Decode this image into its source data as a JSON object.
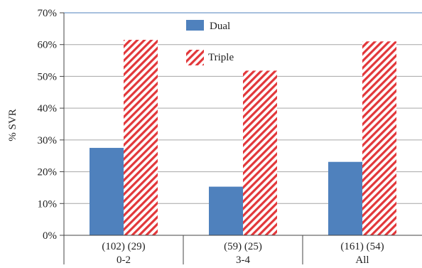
{
  "chart_data": {
    "type": "bar",
    "title": "",
    "xlabel": "",
    "ylabel": "% SVR",
    "ylim": [
      0,
      70
    ],
    "y_ticks": [
      "0%",
      "10%",
      "20%",
      "30%",
      "40%",
      "50%",
      "60%",
      "70%"
    ],
    "grid": true,
    "legend_position": "top-center (inside)",
    "categories": [
      "0-2",
      "3-4",
      "All"
    ],
    "category_counts": [
      "(102) (29)",
      "(59) (25)",
      "(161) (54)"
    ],
    "series": [
      {
        "name": "Dual",
        "values": [
          27.5,
          15.3,
          23.1
        ],
        "color": "#4f81bd",
        "pattern": "solid"
      },
      {
        "name": "Triple",
        "values": [
          61.5,
          51.8,
          61.0
        ],
        "color": "#e2373a",
        "pattern": "diagonal-hatch"
      }
    ]
  }
}
